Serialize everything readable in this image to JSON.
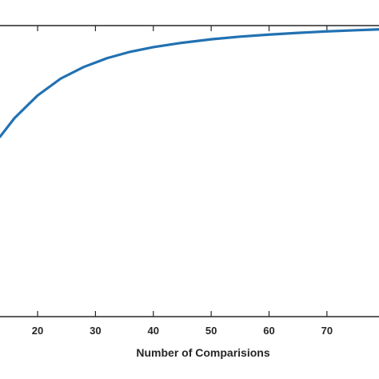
{
  "chart_data": {
    "type": "line",
    "title": "",
    "xlabel": "Number of Comparisions",
    "ylabel": "",
    "xlim": [
      13.5,
      79
    ],
    "ylim": [
      0,
      1.0
    ],
    "x_ticks": [
      20,
      30,
      40,
      50,
      60,
      70
    ],
    "grid": false,
    "legend": "none",
    "colors": {
      "line": "#2271b2",
      "axis": "#262626",
      "background": "#ffffff"
    },
    "series": [
      {
        "x": [
          13.5,
          16,
          20,
          24,
          28,
          32,
          36,
          40,
          45,
          50,
          55,
          60,
          65,
          70,
          75,
          79
        ],
        "y": [
          0.618,
          0.682,
          0.76,
          0.818,
          0.858,
          0.888,
          0.91,
          0.926,
          0.941,
          0.953,
          0.962,
          0.969,
          0.975,
          0.98,
          0.984,
          0.987
        ]
      }
    ]
  }
}
